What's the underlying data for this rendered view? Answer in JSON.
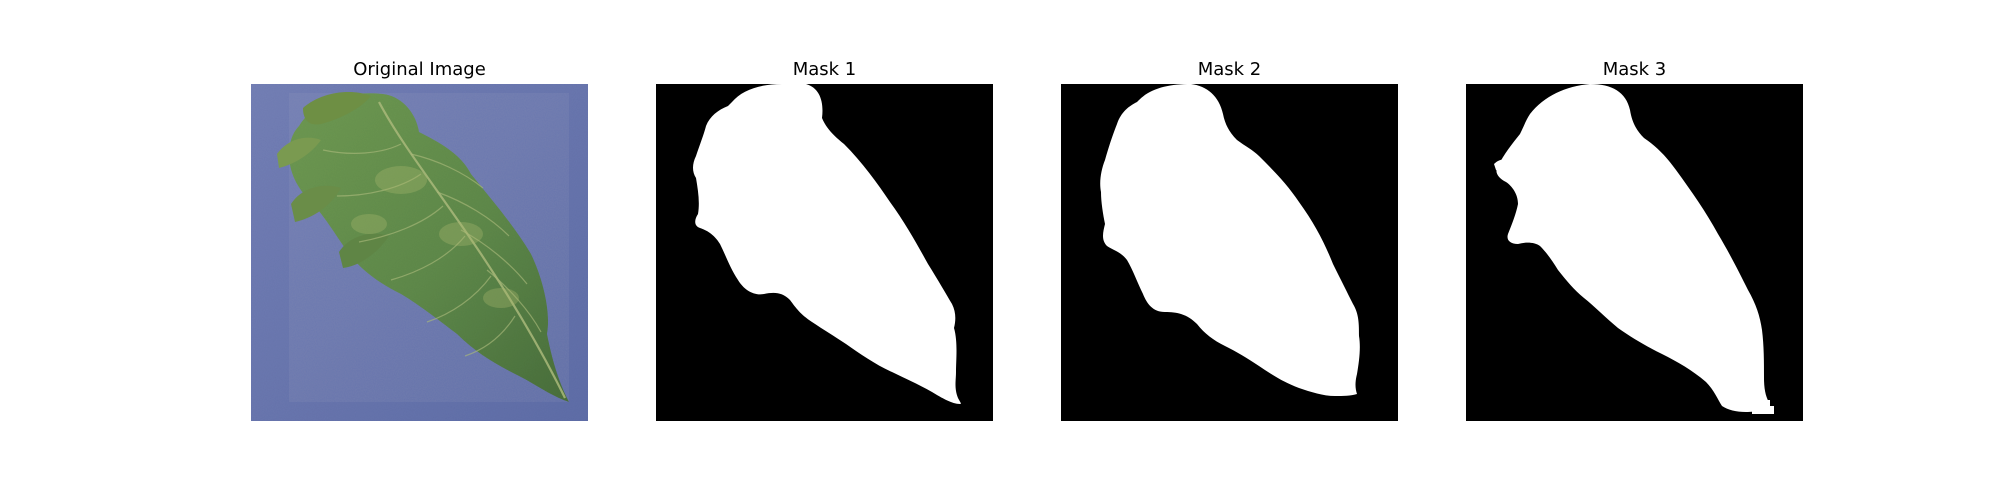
{
  "figure": {
    "panels": [
      {
        "title": "Original Image",
        "kind": "photo",
        "subject": "leaf-on-blue-background"
      },
      {
        "title": "Mask 1",
        "kind": "mask"
      },
      {
        "title": "Mask 2",
        "kind": "mask"
      },
      {
        "title": "Mask 3",
        "kind": "mask"
      }
    ]
  },
  "colors": {
    "background_blue": "#6a78b2",
    "leaf_green": "#5f8a4a",
    "leaf_dark": "#3f5f31",
    "leaf_light": "#9fb46a",
    "mask_foreground": "#ffffff",
    "mask_background": "#000000"
  }
}
